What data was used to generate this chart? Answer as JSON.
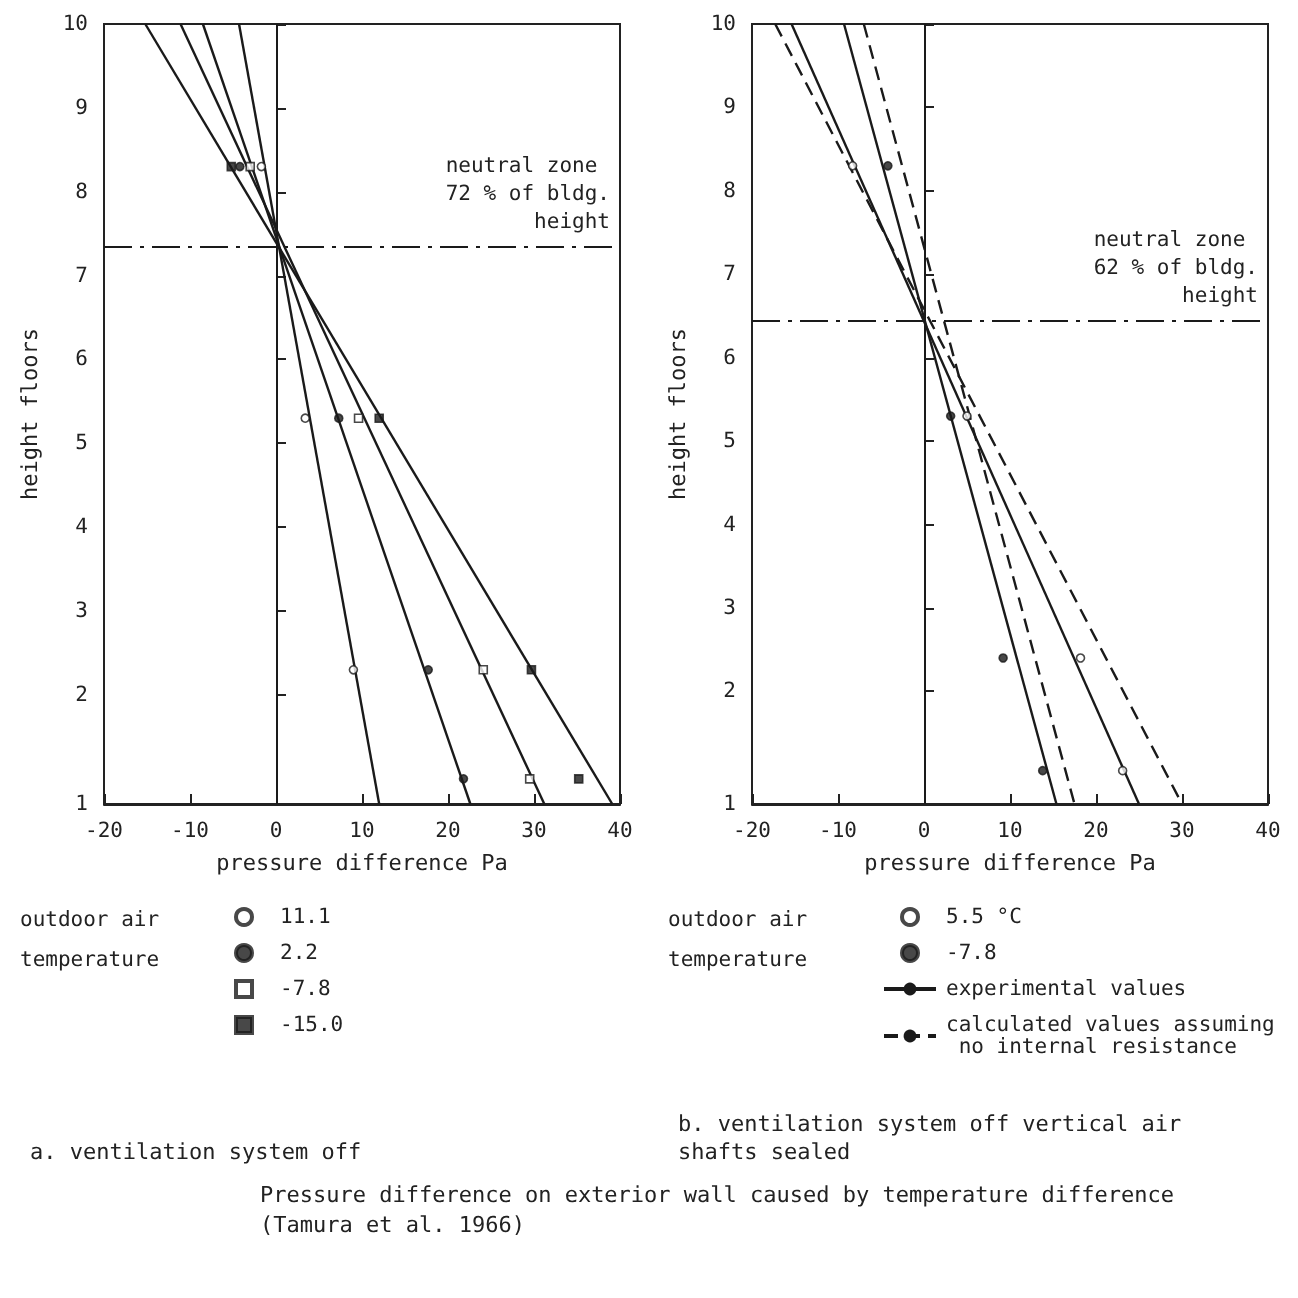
{
  "chart_data": [
    {
      "type": "scatter",
      "subtitle": "a. ventilation system off",
      "xlabel": "pressure difference Pa",
      "ylabel": "height floors",
      "legend_title": "outdoor air temperature",
      "legend": "bottom",
      "grid": false,
      "xlim": [
        -20,
        40
      ],
      "xticks": [
        -20,
        -10,
        0,
        10,
        20,
        30,
        40
      ],
      "ylim": [
        0.7,
        10
      ],
      "yticks": [
        {
          "value": 0.7,
          "label": "1"
        },
        2,
        3,
        4,
        5,
        6,
        7,
        8,
        9,
        10
      ],
      "ref_lines": [
        {
          "axis": "y",
          "value": 7.35,
          "label": "neutral zone 72 % of bldg. height",
          "line_style": "dashed",
          "color": "#1a1a1a"
        },
        {
          "axis": "x",
          "value": 0,
          "label": null,
          "line_style": "solid",
          "color": "#1a1a1a"
        }
      ],
      "annotations": [
        "Pressure difference on exterior wall caused by temperature difference (Tamura et al. 1966)"
      ],
      "series": [
        {
          "name": "11.1",
          "marker": "circle",
          "color": "#ffffff",
          "x": [
            -1.7,
            3.4,
            9.0
          ],
          "values": [
            8.3,
            5.3,
            2.3
          ]
        },
        {
          "name": "2.2",
          "marker": "circle",
          "color": "#1a1a1a",
          "x": [
            -4.2,
            7.3,
            17.7,
            21.8
          ],
          "values": [
            8.3,
            5.3,
            2.3,
            1.0
          ]
        },
        {
          "name": "-7.8",
          "marker": "square",
          "color": "#ffffff",
          "x": [
            -3.0,
            9.6,
            24.1,
            29.5
          ],
          "values": [
            8.3,
            5.3,
            2.3,
            1.0
          ]
        },
        {
          "name": "-15.0",
          "marker": "square",
          "color": "#1a1a1a",
          "x": [
            -5.2,
            12.0,
            29.7,
            35.2
          ],
          "values": [
            8.3,
            5.3,
            2.3,
            1.0
          ]
        },
        {
          "type": "line",
          "line_style": "solid",
          "color": "#1a1a1a",
          "x": [
            -4.3,
            12
          ],
          "values": [
            10,
            0.7
          ]
        },
        {
          "type": "line",
          "line_style": "solid",
          "color": "#1a1a1a",
          "x": [
            -8.5,
            22.6
          ],
          "values": [
            10,
            0.7
          ]
        },
        {
          "type": "line",
          "line_style": "solid",
          "color": "#1a1a1a",
          "x": [
            -11.1,
            31.2
          ],
          "values": [
            10,
            0.7
          ]
        },
        {
          "type": "line",
          "line_style": "solid",
          "color": "#1a1a1a",
          "x": [
            -15.2,
            39.1
          ],
          "values": [
            10,
            0.7
          ]
        }
      ]
    },
    {
      "type": "scatter",
      "subtitle": "b. ventilation system off vertical air shafts sealed",
      "xlabel": "pressure difference Pa",
      "ylabel": "height floors",
      "legend_title": "outdoor air temperature",
      "legend": "bottom",
      "grid": false,
      "xlim": [
        -20,
        40
      ],
      "xticks": [
        -20,
        -10,
        0,
        10,
        20,
        30,
        40
      ],
      "ylim": [
        0.65,
        10
      ],
      "yticks": [
        {
          "value": 0.65,
          "label": "1"
        },
        2,
        3,
        4,
        5,
        6,
        7,
        8,
        9,
        10
      ],
      "ref_lines": [
        {
          "axis": "y",
          "value": 6.45,
          "label": "neutral zone 62 % of bldg. height",
          "line_style": "dashed",
          "color": "#1a1a1a"
        },
        {
          "axis": "x",
          "value": 0,
          "label": null,
          "line_style": "solid",
          "color": "#1a1a1a"
        }
      ],
      "series": [
        {
          "name": "5.5 °C",
          "marker": "circle",
          "color": "#ffffff",
          "x": [
            -8.3,
            5.0,
            18.2,
            23.1
          ],
          "values": [
            8.3,
            5.3,
            2.4,
            1.05
          ]
        },
        {
          "name": "-7.8",
          "marker": "circle",
          "color": "#1a1a1a",
          "x": [
            -4.2,
            3.1,
            9.2,
            13.8
          ],
          "values": [
            8.3,
            5.3,
            2.4,
            1.05
          ]
        },
        {
          "name": "experimental values",
          "type": "line",
          "line_style": "solid",
          "color": "#1a1a1a",
          "x": [
            -15.4,
            25
          ],
          "values": [
            10,
            0.65
          ]
        },
        {
          "type": "line",
          "line_style": "solid",
          "color": "#1a1a1a",
          "x": [
            -9.3,
            15.4
          ],
          "values": [
            10,
            0.65
          ]
        },
        {
          "name": "calculated values assuming no internal resistance",
          "type": "line",
          "line_style": "dashed",
          "color": "#1a1a1a",
          "x": [
            -17.3,
            30
          ],
          "values": [
            10,
            0.65
          ]
        },
        {
          "type": "line",
          "line_style": "dashed",
          "color": "#1a1a1a",
          "x": [
            -7.0,
            17.5
          ],
          "values": [
            10,
            0.65
          ]
        }
      ]
    }
  ]
}
